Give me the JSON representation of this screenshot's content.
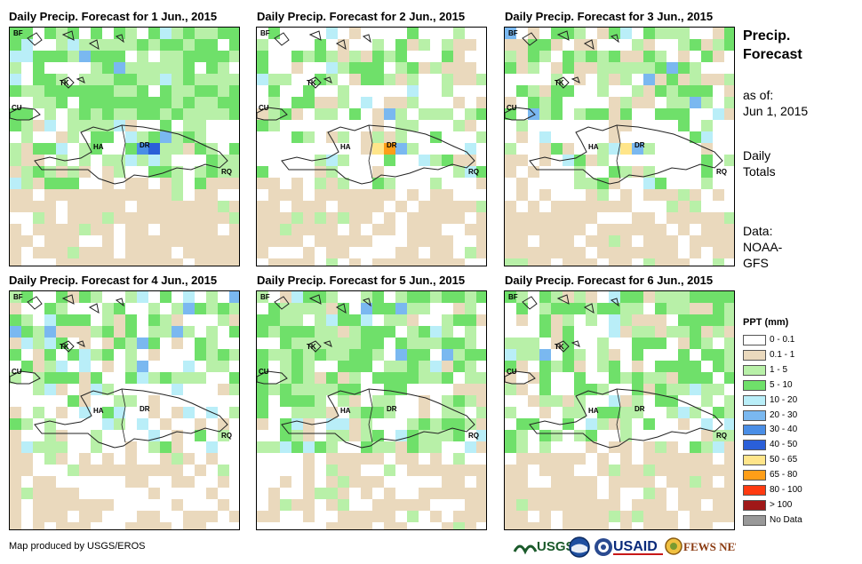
{
  "panels": [
    {
      "title": "Daily Precip. Forecast for 1 Jun., 2015"
    },
    {
      "title": "Daily Precip. Forecast for 2 Jun., 2015"
    },
    {
      "title": "Daily Precip. Forecast for 3 Jun., 2015"
    },
    {
      "title": "Daily Precip. Forecast for 4 Jun., 2015"
    },
    {
      "title": "Daily Precip. Forecast for 5 Jun., 2015"
    },
    {
      "title": "Daily Precip. Forecast for 6 Jun., 2015"
    }
  ],
  "map_labels": {
    "bf": "BF",
    "tk": "TK",
    "cu": "CU",
    "ha": "HA",
    "dr": "DR",
    "rq": "RQ"
  },
  "sidebar": {
    "title_line1": "Precip.",
    "title_line2": "Forecast",
    "asof_label": "as of:",
    "asof_date": "Jun 1, 2015",
    "totals_line1": "Daily",
    "totals_line2": "Totals",
    "data_line1": "Data:",
    "data_line2": "NOAA-",
    "data_line3": "GFS"
  },
  "legend": {
    "title": "PPT (mm)",
    "items": [
      {
        "label": "0 - 0.1",
        "color": "#ffffff"
      },
      {
        "label": "0.1 - 1",
        "color": "#ead9bd"
      },
      {
        "label": "1 - 5",
        "color": "#b8f0a8"
      },
      {
        "label": "5 - 10",
        "color": "#6fe06a"
      },
      {
        "label": "10 - 20",
        "color": "#b9eef8"
      },
      {
        "label": "20 - 30",
        "color": "#7ab8f0"
      },
      {
        "label": "30 - 40",
        "color": "#4a8ee6"
      },
      {
        "label": "40 - 50",
        "color": "#2a5fd8"
      },
      {
        "label": "50 - 65",
        "color": "#ffe58a"
      },
      {
        "label": "65 - 80",
        "color": "#ff9e18"
      },
      {
        "label": "80 - 100",
        "color": "#ff3a10"
      },
      {
        "label": "> 100",
        "color": "#a01818"
      },
      {
        "label": "No Data",
        "color": "#999999"
      }
    ]
  },
  "footer": {
    "credit": "Map produced by USGS/EROS",
    "logo_usgs": "USGS",
    "logo_noaa": "NOAA",
    "logo_usaid": "USAID",
    "logo_fewsnet": "FEWS NET"
  }
}
